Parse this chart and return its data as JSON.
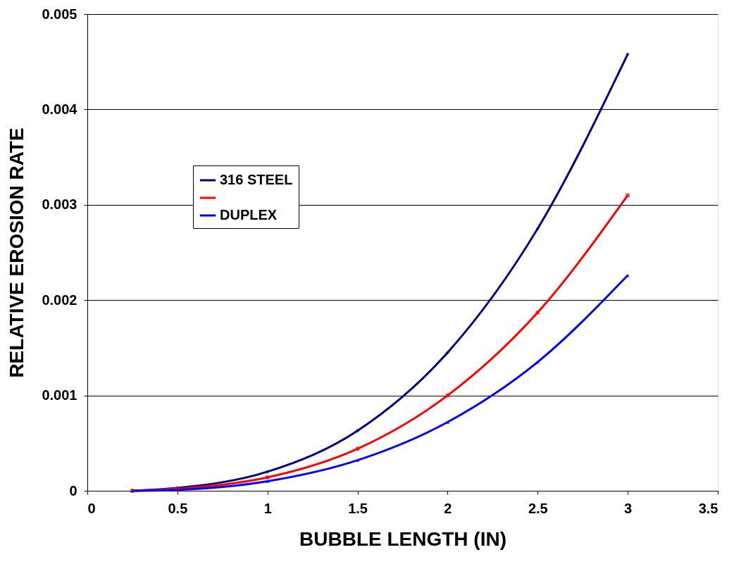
{
  "chart_data": {
    "type": "line",
    "xlabel": "BUBBLE LENGTH (IN)",
    "ylabel": "RELATIVE EROSION RATE",
    "x": [
      0.25,
      0.5,
      1,
      1.5,
      2,
      2.5,
      3
    ],
    "xlim": [
      0,
      3.5
    ],
    "xticks": [
      0,
      0.5,
      1,
      1.5,
      2,
      2.5,
      3,
      3.5
    ],
    "ylim": [
      0,
      0.005
    ],
    "yticks": [
      0,
      0.001,
      0.002,
      0.003,
      0.004,
      0.005
    ],
    "grid": "y",
    "legend": "left",
    "line_style": "solid",
    "series": [
      {
        "name": "316 STEEL",
        "color": "#000080",
        "marker": "diamond",
        "values": [
          0,
          3e-05,
          0.0002,
          0.00063,
          0.00145,
          0.00275,
          0.00458
        ]
      },
      {
        "color": "#ff0000",
        "marker": "square",
        "values": [
          0,
          2e-05,
          0.00014,
          0.00044,
          0.001,
          0.00187,
          0.0031
        ]
      },
      {
        "name": "DUPLEX",
        "color": "#0000ff",
        "marker": "triangle",
        "values": [
          0,
          1e-05,
          0.0001,
          0.00032,
          0.00072,
          0.00135,
          0.00226
        ]
      }
    ]
  }
}
